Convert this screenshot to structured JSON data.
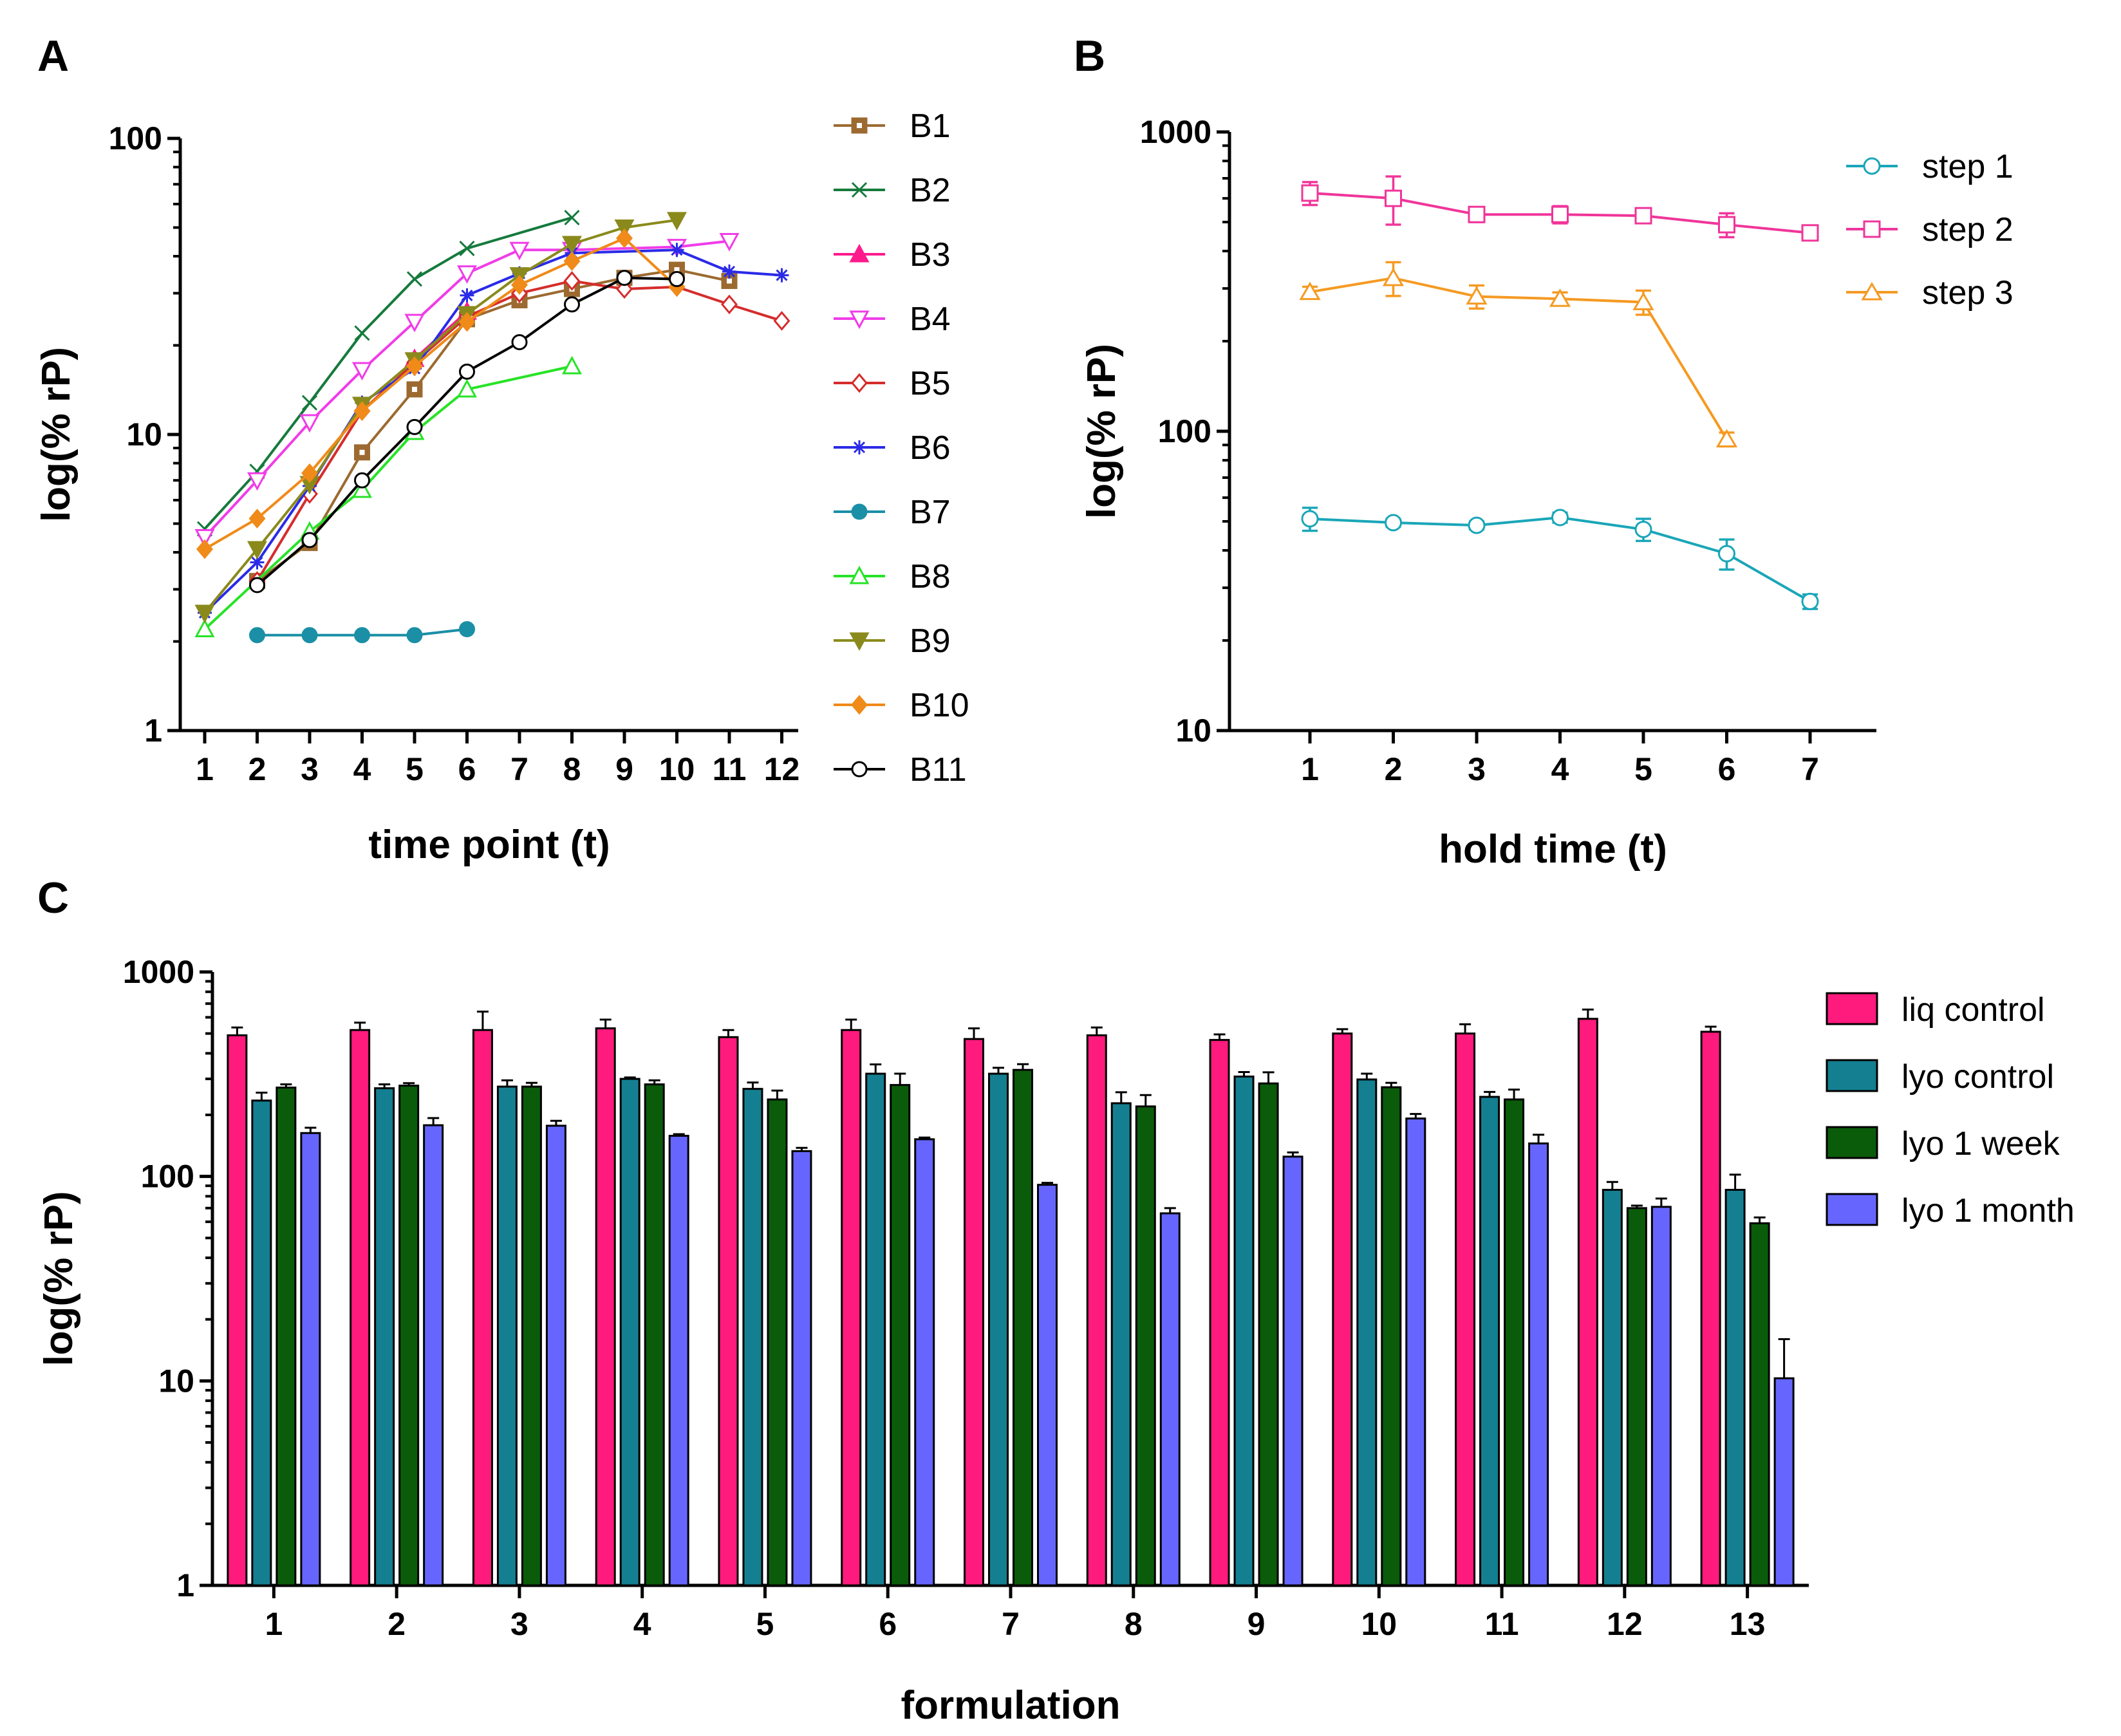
{
  "panels": {
    "a": "A",
    "b": "B",
    "c": "C"
  },
  "chart_data": [
    {
      "id": "A",
      "type": "line",
      "scale": "log",
      "xlabel": "time point (t)",
      "ylabel": "log(% rP)",
      "ylim": [
        1,
        100
      ],
      "yticks": [
        1,
        10,
        100
      ],
      "xticks": [
        1,
        2,
        3,
        4,
        5,
        6,
        7,
        8,
        9,
        10,
        11,
        12
      ],
      "legend_position": "right",
      "series": [
        {
          "name": "B1",
          "color": "#9c6a30",
          "marker": "square-dot",
          "x": [
            2,
            3,
            4,
            5,
            6,
            7,
            8,
            9,
            10,
            11
          ],
          "y": [
            3.2,
            4.3,
            8.7,
            14.2,
            24.5,
            28.4,
            31,
            33.8,
            36,
            33
          ]
        },
        {
          "name": "B2",
          "color": "#157a3c",
          "marker": "x",
          "x": [
            1,
            2,
            3,
            4,
            5,
            6,
            8
          ],
          "y": [
            4.8,
            7.5,
            12.8,
            22,
            33.5,
            42.5,
            54
          ]
        },
        {
          "name": "B3",
          "color": "#ff1a8c",
          "marker": "triangle-up",
          "x": [
            5,
            6
          ],
          "y": [
            18,
            26
          ]
        },
        {
          "name": "B4",
          "color": "#f03ce8",
          "marker": "triangle-down-open",
          "x": [
            1,
            2,
            3,
            4,
            5,
            6,
            7,
            8,
            10,
            11
          ],
          "y": [
            4.5,
            7,
            11,
            16.5,
            24,
            35,
            42,
            42,
            43,
            45
          ]
        },
        {
          "name": "B5",
          "color": "#d62c2c",
          "marker": "diamond-open",
          "x": [
            2,
            3,
            4,
            5,
            6,
            7,
            8,
            9,
            10,
            11,
            12
          ],
          "y": [
            3.2,
            6.3,
            12,
            17.5,
            25,
            30,
            33,
            31,
            31.5,
            27.5,
            24.2
          ]
        },
        {
          "name": "B6",
          "color": "#2a2ae8",
          "marker": "star",
          "x": [
            1,
            2,
            3,
            4,
            5,
            6,
            7,
            8,
            10,
            11,
            12
          ],
          "y": [
            2.5,
            3.7,
            6.7,
            12.8,
            16.7,
            29.5,
            35,
            41,
            42,
            35.5,
            34.5
          ]
        },
        {
          "name": "B7",
          "color": "#1a8fa6",
          "marker": "circle-filled",
          "x": [
            2,
            3,
            4,
            5,
            6
          ],
          "y": [
            2.1,
            2.1,
            2.1,
            2.1,
            2.2
          ]
        },
        {
          "name": "B8",
          "color": "#27e327",
          "marker": "triangle-up-open",
          "x": [
            1,
            3,
            4,
            5,
            6,
            8
          ],
          "y": [
            2.2,
            4.7,
            6.5,
            10.2,
            14.2,
            17
          ]
        },
        {
          "name": "B9",
          "color": "#8a8a1c",
          "marker": "triangle-down",
          "x": [
            1,
            2,
            3,
            4,
            5,
            6,
            7,
            8,
            9,
            10
          ],
          "y": [
            2.5,
            4.1,
            6.8,
            12.6,
            17.8,
            25.5,
            34.5,
            44,
            50,
            53
          ]
        },
        {
          "name": "B10",
          "color": "#f08a18",
          "marker": "diamond",
          "x": [
            1,
            2,
            3,
            4,
            5,
            6,
            7,
            8,
            9,
            10
          ],
          "y": [
            4.1,
            5.2,
            7.4,
            12,
            17,
            24,
            32,
            38.5,
            46,
            31.5
          ]
        },
        {
          "name": "B11",
          "color": "#000000",
          "marker": "circle-open",
          "x": [
            2,
            3,
            4,
            5,
            6,
            7,
            8,
            9,
            10
          ],
          "y": [
            3.1,
            4.4,
            7,
            10.6,
            16.3,
            20.5,
            27.5,
            33.8,
            33.5
          ]
        }
      ]
    },
    {
      "id": "B",
      "type": "line",
      "scale": "log",
      "xlabel": "hold time (t)",
      "ylabel": "log(% rP)",
      "ylim": [
        10,
        1000
      ],
      "yticks": [
        10,
        100,
        1000
      ],
      "xticks": [
        1,
        2,
        3,
        4,
        5,
        6,
        7
      ],
      "legend_position": "top-right",
      "series": [
        {
          "name": "step 1",
          "color": "#1aa6b8",
          "marker": "circle-cross-open",
          "x": [
            1,
            2,
            3,
            4,
            5,
            6,
            7
          ],
          "y": [
            51,
            49.5,
            48.5,
            51.5,
            47,
            39,
            27
          ],
          "err": [
            4.5,
            1.5,
            1.5,
            2,
            4,
            4.5,
            1.5
          ]
        },
        {
          "name": "step 2",
          "color": "#f0359a",
          "marker": "square-cross-open",
          "x": [
            1,
            2,
            3,
            4,
            5,
            6,
            7
          ],
          "y": [
            625,
            600,
            530,
            530,
            525,
            490,
            460
          ],
          "err": [
            55,
            110,
            30,
            35,
            25,
            45,
            20
          ]
        },
        {
          "name": "step 3",
          "color": "#f59a22",
          "marker": "triangle-open",
          "x": [
            1,
            2,
            3,
            4,
            5,
            6
          ],
          "y": [
            292,
            325,
            282,
            277,
            270,
            94
          ],
          "err": [
            12,
            42,
            25,
            14,
            25,
            5
          ]
        }
      ]
    },
    {
      "id": "C",
      "type": "bar",
      "scale": "log",
      "xlabel": "formulation",
      "ylabel": "log(% rP)",
      "ylim": [
        1,
        1000
      ],
      "yticks": [
        1,
        10,
        100,
        1000
      ],
      "legend_position": "top-right",
      "categories": [
        "1",
        "2",
        "3",
        "4",
        "5",
        "6",
        "7",
        "8",
        "9",
        "10",
        "11",
        "12",
        "13"
      ],
      "series": [
        {
          "name": "liq control",
          "color": "#ff1a7d",
          "values": [
            490,
            520,
            520,
            530,
            480,
            520,
            470,
            490,
            465,
            500,
            500,
            590,
            510
          ],
          "err": [
            45,
            45,
            120,
            55,
            40,
            65,
            60,
            45,
            30,
            25,
            55,
            65,
            30
          ]
        },
        {
          "name": "lyo control",
          "color": "#147f91",
          "values": [
            235,
            270,
            275,
            300,
            268,
            318,
            318,
            228,
            308,
            298,
            245,
            86,
            86
          ],
          "err": [
            22,
            12,
            20,
            5,
            20,
            35,
            22,
            30,
            16,
            20,
            14,
            8,
            16
          ]
        },
        {
          "name": "lyo 1 week",
          "color": "#0a5c0a",
          "values": [
            272,
            278,
            275,
            282,
            238,
            280,
            332,
            220,
            285,
            273,
            238,
            70,
            59
          ],
          "err": [
            10,
            8,
            12,
            13,
            25,
            38,
            22,
            30,
            38,
            14,
            28,
            2,
            4
          ]
        },
        {
          "name": "lyo 1 month",
          "color": "#6666ff",
          "values": [
            163,
            178,
            177,
            158,
            133,
            152,
            91,
            66,
            125,
            192,
            145,
            71,
            10.3
          ],
          "err": [
            10,
            15,
            10,
            3,
            5,
            3,
            2,
            4,
            6,
            10,
            15,
            7,
            5.7
          ]
        }
      ]
    }
  ]
}
